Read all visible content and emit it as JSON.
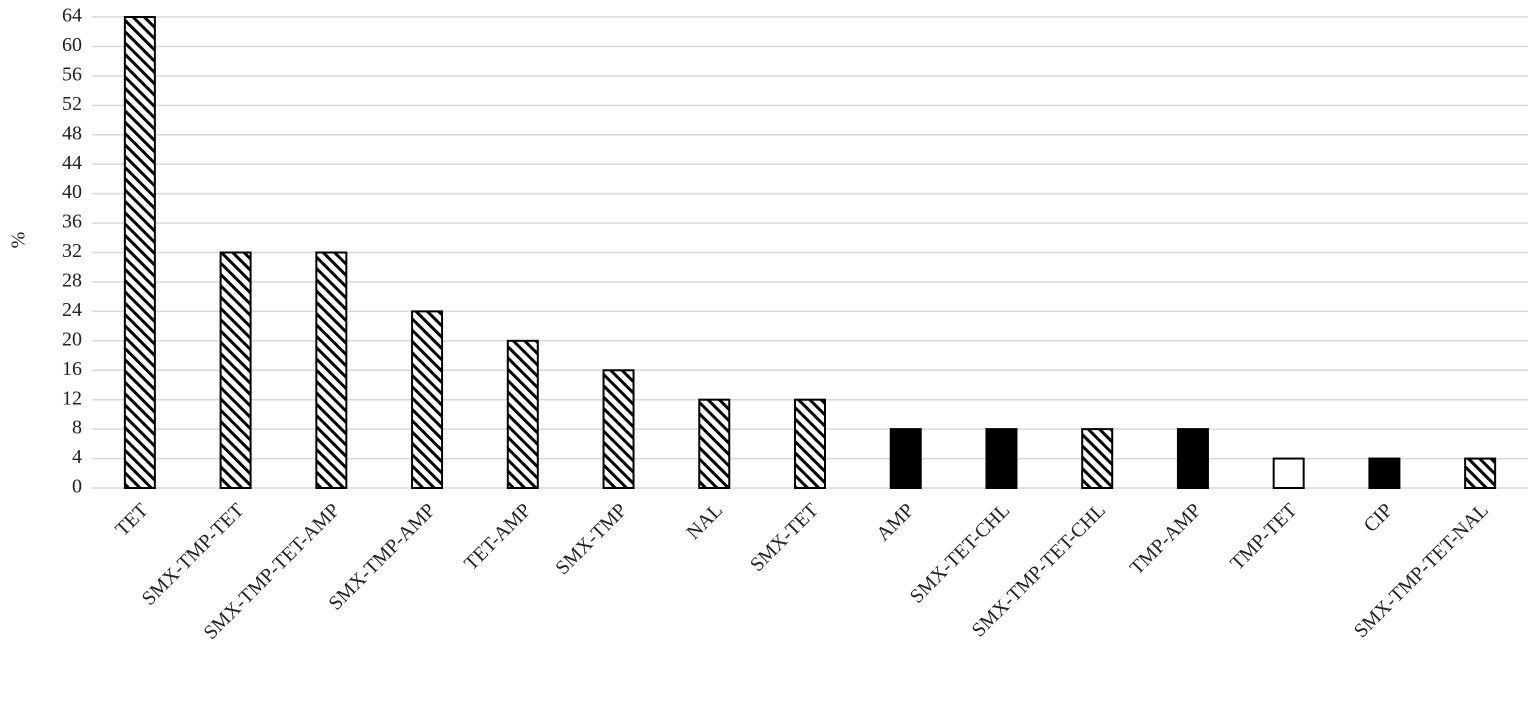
{
  "chart_data": {
    "type": "bar",
    "y_label": "%",
    "categories": [
      "TET",
      "SMX-TMP-TET",
      "SMX-TMP-TET-AMP",
      "SMX-TMP-AMP",
      "TET-AMP",
      "SMX-TMP",
      "NAL",
      "SMX-TET",
      "AMP",
      "SMX-TET-CHL",
      "SMX-TMP-TET-CHL",
      "TMP-AMP",
      "TMP-TET",
      "CIP",
      "SMX-TMP-TET-NAL"
    ],
    "values": [
      64,
      32,
      32,
      24,
      20,
      16,
      12,
      12,
      8,
      8,
      8,
      8,
      4,
      4,
      4
    ],
    "bar_styles": [
      "hatched",
      "hatched",
      "hatched",
      "hatched",
      "hatched",
      "hatched",
      "hatched",
      "hatched",
      "solid",
      "solid",
      "hatched",
      "solid",
      "empty",
      "solid",
      "hatched"
    ],
    "color": "#000000",
    "ylim": [
      0,
      64
    ],
    "yticks": [
      0,
      4,
      8,
      12,
      16,
      20,
      24,
      28,
      32,
      36,
      40,
      44,
      48,
      52,
      56,
      60,
      64
    ],
    "grid": true
  }
}
